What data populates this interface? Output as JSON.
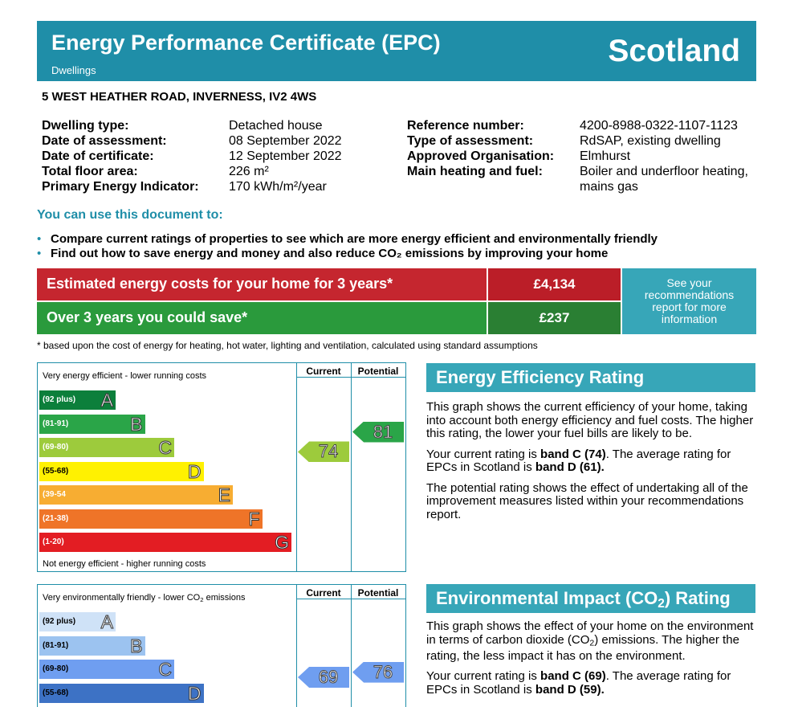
{
  "header": {
    "title": "Energy Performance Certificate (EPC)",
    "subtitle": "Dwellings",
    "country": "Scotland",
    "color": "#1f8ea8"
  },
  "address": "5 WEST HEATHER ROAD, INVERNESS, IV2 4WS",
  "details_left": [
    {
      "label": "Dwelling type:",
      "value": "Detached house"
    },
    {
      "label": "Date of assessment:",
      "value": "08 September 2022"
    },
    {
      "label": "Date of certificate:",
      "value": "12 September 2022"
    },
    {
      "label": "Total floor area:",
      "value": "226 m²"
    },
    {
      "label": "Primary Energy Indicator:",
      "value": "170 kWh/m²/year"
    }
  ],
  "details_right": [
    {
      "label": "Reference number:",
      "value": "4200-8988-0322-1107-1123"
    },
    {
      "label": "Type of assessment:",
      "value": "RdSAP, existing dwelling"
    },
    {
      "label": "Approved Organisation:",
      "value": "Elmhurst"
    },
    {
      "label": "Main heating and fuel:",
      "value": "Boiler and underfloor heating, mains gas"
    }
  ],
  "use_title": "You can use this document to:",
  "bullets": [
    "Compare current ratings of properties to see which are more energy efficient and environmentally friendly",
    "Find out how to save energy and money and also reduce CO₂ emissions by improving your home"
  ],
  "costs": {
    "estimated_label": "Estimated energy costs for your home for 3 years*",
    "estimated_value": "£4,134",
    "save_label": "Over 3 years you could save*",
    "save_value": "£237",
    "see_recommendations": "See your recommendations report for more information"
  },
  "footnote": "* based upon the cost of energy for heating, hot water, lighting and ventilation, calculated using standard assumptions",
  "columns": {
    "current": "Current",
    "potential": "Potential"
  },
  "energy_chart": {
    "top_note": "Very energy efficient - lower running costs",
    "bottom_note": "Not energy efficient - higher running costs",
    "bands": [
      {
        "range": "(92 plus)",
        "letter": "A",
        "color": "#0c7f3b"
      },
      {
        "range": "(81-91)",
        "letter": "B",
        "color": "#2aa548"
      },
      {
        "range": "(69-80)",
        "letter": "C",
        "color": "#9dcb3c"
      },
      {
        "range": "(55-68)",
        "letter": "D",
        "color": "#fff101"
      },
      {
        "range": "(39-54",
        "letter": "E",
        "color": "#f7ad32"
      },
      {
        "range": "(21-38)",
        "letter": "F",
        "color": "#ef7428"
      },
      {
        "range": "(1-20)",
        "letter": "G",
        "color": "#e31d23"
      }
    ],
    "current": 74,
    "potential": 81,
    "current_color": "#9dcb3c",
    "potential_color": "#2aa548"
  },
  "env_chart": {
    "top_note": "Very environmentally friendly - lower CO₂ emissions",
    "bands": [
      {
        "range": "(92 plus)",
        "letter": "A",
        "color": "#cfe2f7"
      },
      {
        "range": "(81-91)",
        "letter": "B",
        "color": "#9cc3f0"
      },
      {
        "range": "(69-80)",
        "letter": "C",
        "color": "#6f9ef0"
      },
      {
        "range": "(55-68)",
        "letter": "D",
        "color": "#3d72c5"
      }
    ],
    "current": 69,
    "potential": 76,
    "current_color": "#6f9ef0",
    "potential_color": "#6f9ef0"
  },
  "energy_info": {
    "title": "Energy Efficiency Rating",
    "p1": "This graph shows the current efficiency of your home, taking into account both energy efficiency and fuel costs. The higher this rating, the lower your fuel bills are likely to be.",
    "p2_a": "Your current rating is ",
    "p2_b": "band C (74)",
    "p2_c": ". The average rating for EPCs in Scotland is ",
    "p2_d": "band D (61).",
    "p3": "The potential rating shows the effect of undertaking all of the improvement measures listed within your recommendations report."
  },
  "env_info": {
    "title": "Environmental Impact (CO₂) Rating",
    "p1": "This graph shows the effect of your home on the environment in terms of carbon dioxide (CO₂) emissions. The higher the rating, the less impact it has on the environment.",
    "p2_a": "Your current rating is ",
    "p2_b": "band C (69)",
    "p2_c": ". The average rating for EPCs in Scotland is ",
    "p2_d": "band D (59)."
  }
}
